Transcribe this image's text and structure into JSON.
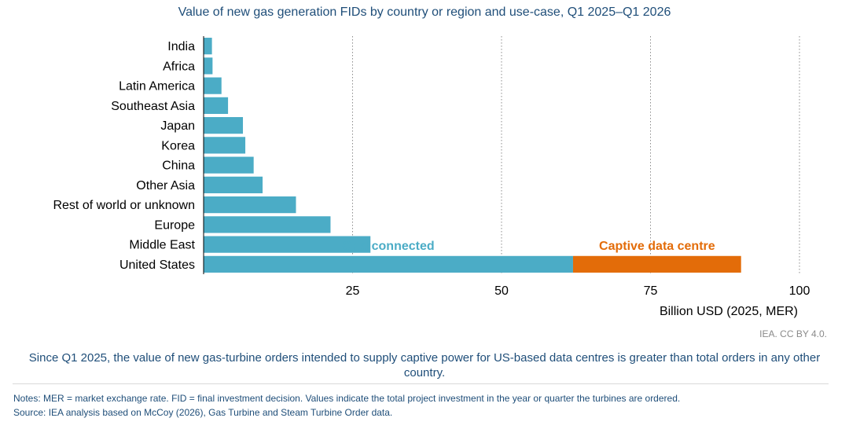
{
  "chart_data": {
    "type": "bar",
    "orientation": "horizontal",
    "stacked": true,
    "title": "Value of new gas generation FIDs by country or region and use-case, Q1 2025–Q1 2026",
    "xlabel": "Billion USD (2025, MER)",
    "ylabel": "",
    "xlim": [
      0,
      100
    ],
    "xticks": [
      25,
      50,
      75,
      100
    ],
    "grid": "vertical dotted",
    "categories": [
      "India",
      "Africa",
      "Latin America",
      "Southeast Asia",
      "Japan",
      "Korea",
      "China",
      "Other Asia",
      "Rest of world or unknown",
      "Europe",
      "Middle East",
      "United States"
    ],
    "series": [
      {
        "name": "Grid connected",
        "color": "#4bacc6",
        "values": [
          1.4,
          1.5,
          3.0,
          4.1,
          6.6,
          7.0,
          8.4,
          9.9,
          15.5,
          21.3,
          28.0,
          62.0
        ]
      },
      {
        "name": "Captive data centre",
        "color": "#e36c09",
        "values": [
          0,
          0,
          0,
          0,
          0,
          0,
          0,
          0,
          0,
          0,
          0,
          28.2
        ]
      }
    ],
    "legend": "inline labels above the United States bar"
  },
  "credit": "IEA. CC BY 4.0.",
  "caption": "Since Q1 2025, the value of new gas-turbine orders intended to supply captive power for US-based data centres is greater than total orders in any other country.",
  "notes": {
    "line1": "Notes: MER = market exchange rate. FID = final investment decision. Values indicate the total project investment in the year or quarter the turbines are ordered.",
    "line2": "Source: IEA analysis based on McCoy (2026), Gas Turbine and Steam Turbine Order data."
  }
}
